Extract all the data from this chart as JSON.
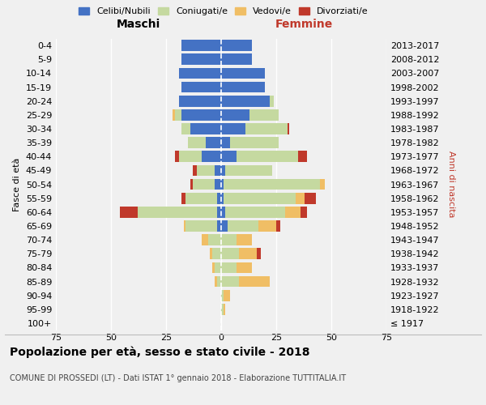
{
  "age_groups": [
    "100+",
    "95-99",
    "90-94",
    "85-89",
    "80-84",
    "75-79",
    "70-74",
    "65-69",
    "60-64",
    "55-59",
    "50-54",
    "45-49",
    "40-44",
    "35-39",
    "30-34",
    "25-29",
    "20-24",
    "15-19",
    "10-14",
    "5-9",
    "0-4"
  ],
  "birth_years": [
    "≤ 1917",
    "1918-1922",
    "1923-1927",
    "1928-1932",
    "1933-1937",
    "1938-1942",
    "1943-1947",
    "1948-1952",
    "1953-1957",
    "1958-1962",
    "1963-1967",
    "1968-1972",
    "1973-1977",
    "1978-1982",
    "1983-1987",
    "1988-1992",
    "1993-1997",
    "1998-2002",
    "2003-2007",
    "2008-2012",
    "2013-2017"
  ],
  "male": {
    "celibi": [
      0,
      0,
      0,
      0,
      0,
      0,
      0,
      2,
      2,
      2,
      3,
      3,
      9,
      7,
      14,
      18,
      19,
      18,
      19,
      18,
      18
    ],
    "coniugati": [
      0,
      0,
      0,
      2,
      3,
      4,
      6,
      14,
      36,
      14,
      10,
      8,
      10,
      8,
      4,
      3,
      0,
      0,
      0,
      0,
      0
    ],
    "vedovi": [
      0,
      0,
      0,
      1,
      1,
      1,
      3,
      1,
      0,
      0,
      0,
      0,
      0,
      0,
      0,
      1,
      0,
      0,
      0,
      0,
      0
    ],
    "divorziati": [
      0,
      0,
      0,
      0,
      0,
      0,
      0,
      0,
      8,
      2,
      1,
      2,
      2,
      0,
      0,
      0,
      0,
      0,
      0,
      0,
      0
    ]
  },
  "female": {
    "nubili": [
      0,
      0,
      0,
      0,
      0,
      0,
      0,
      3,
      2,
      1,
      1,
      2,
      7,
      4,
      11,
      13,
      22,
      20,
      20,
      14,
      14
    ],
    "coniugate": [
      0,
      1,
      1,
      8,
      7,
      8,
      7,
      14,
      27,
      33,
      44,
      21,
      28,
      22,
      19,
      13,
      2,
      0,
      0,
      0,
      0
    ],
    "vedove": [
      0,
      1,
      3,
      14,
      7,
      8,
      7,
      8,
      7,
      4,
      2,
      0,
      0,
      0,
      0,
      0,
      0,
      0,
      0,
      0,
      0
    ],
    "divorziate": [
      0,
      0,
      0,
      0,
      0,
      2,
      0,
      2,
      3,
      5,
      0,
      0,
      4,
      0,
      1,
      0,
      0,
      0,
      0,
      0,
      0
    ]
  },
  "colors": {
    "celibi": "#4472c4",
    "coniugati": "#c5d9a0",
    "vedovi": "#f0be65",
    "divorziati": "#c0392b"
  },
  "xlim": 75,
  "title": "Popolazione per età, sesso e stato civile - 2018",
  "subtitle": "COMUNE DI PROSSEDI (LT) - Dati ISTAT 1° gennaio 2018 - Elaborazione TUTTITALIA.IT",
  "ylabel_left": "Fasce di età",
  "ylabel_right": "Anni di nascita",
  "xlabel_maschi": "Maschi",
  "xlabel_femmine": "Femmine",
  "legend_labels": [
    "Celibi/Nubili",
    "Coniugati/e",
    "Vedovi/e",
    "Divorziati/e"
  ],
  "background_color": "#f0f0f0",
  "grid_color": "#ffffff",
  "accent_color": "#c0392b"
}
